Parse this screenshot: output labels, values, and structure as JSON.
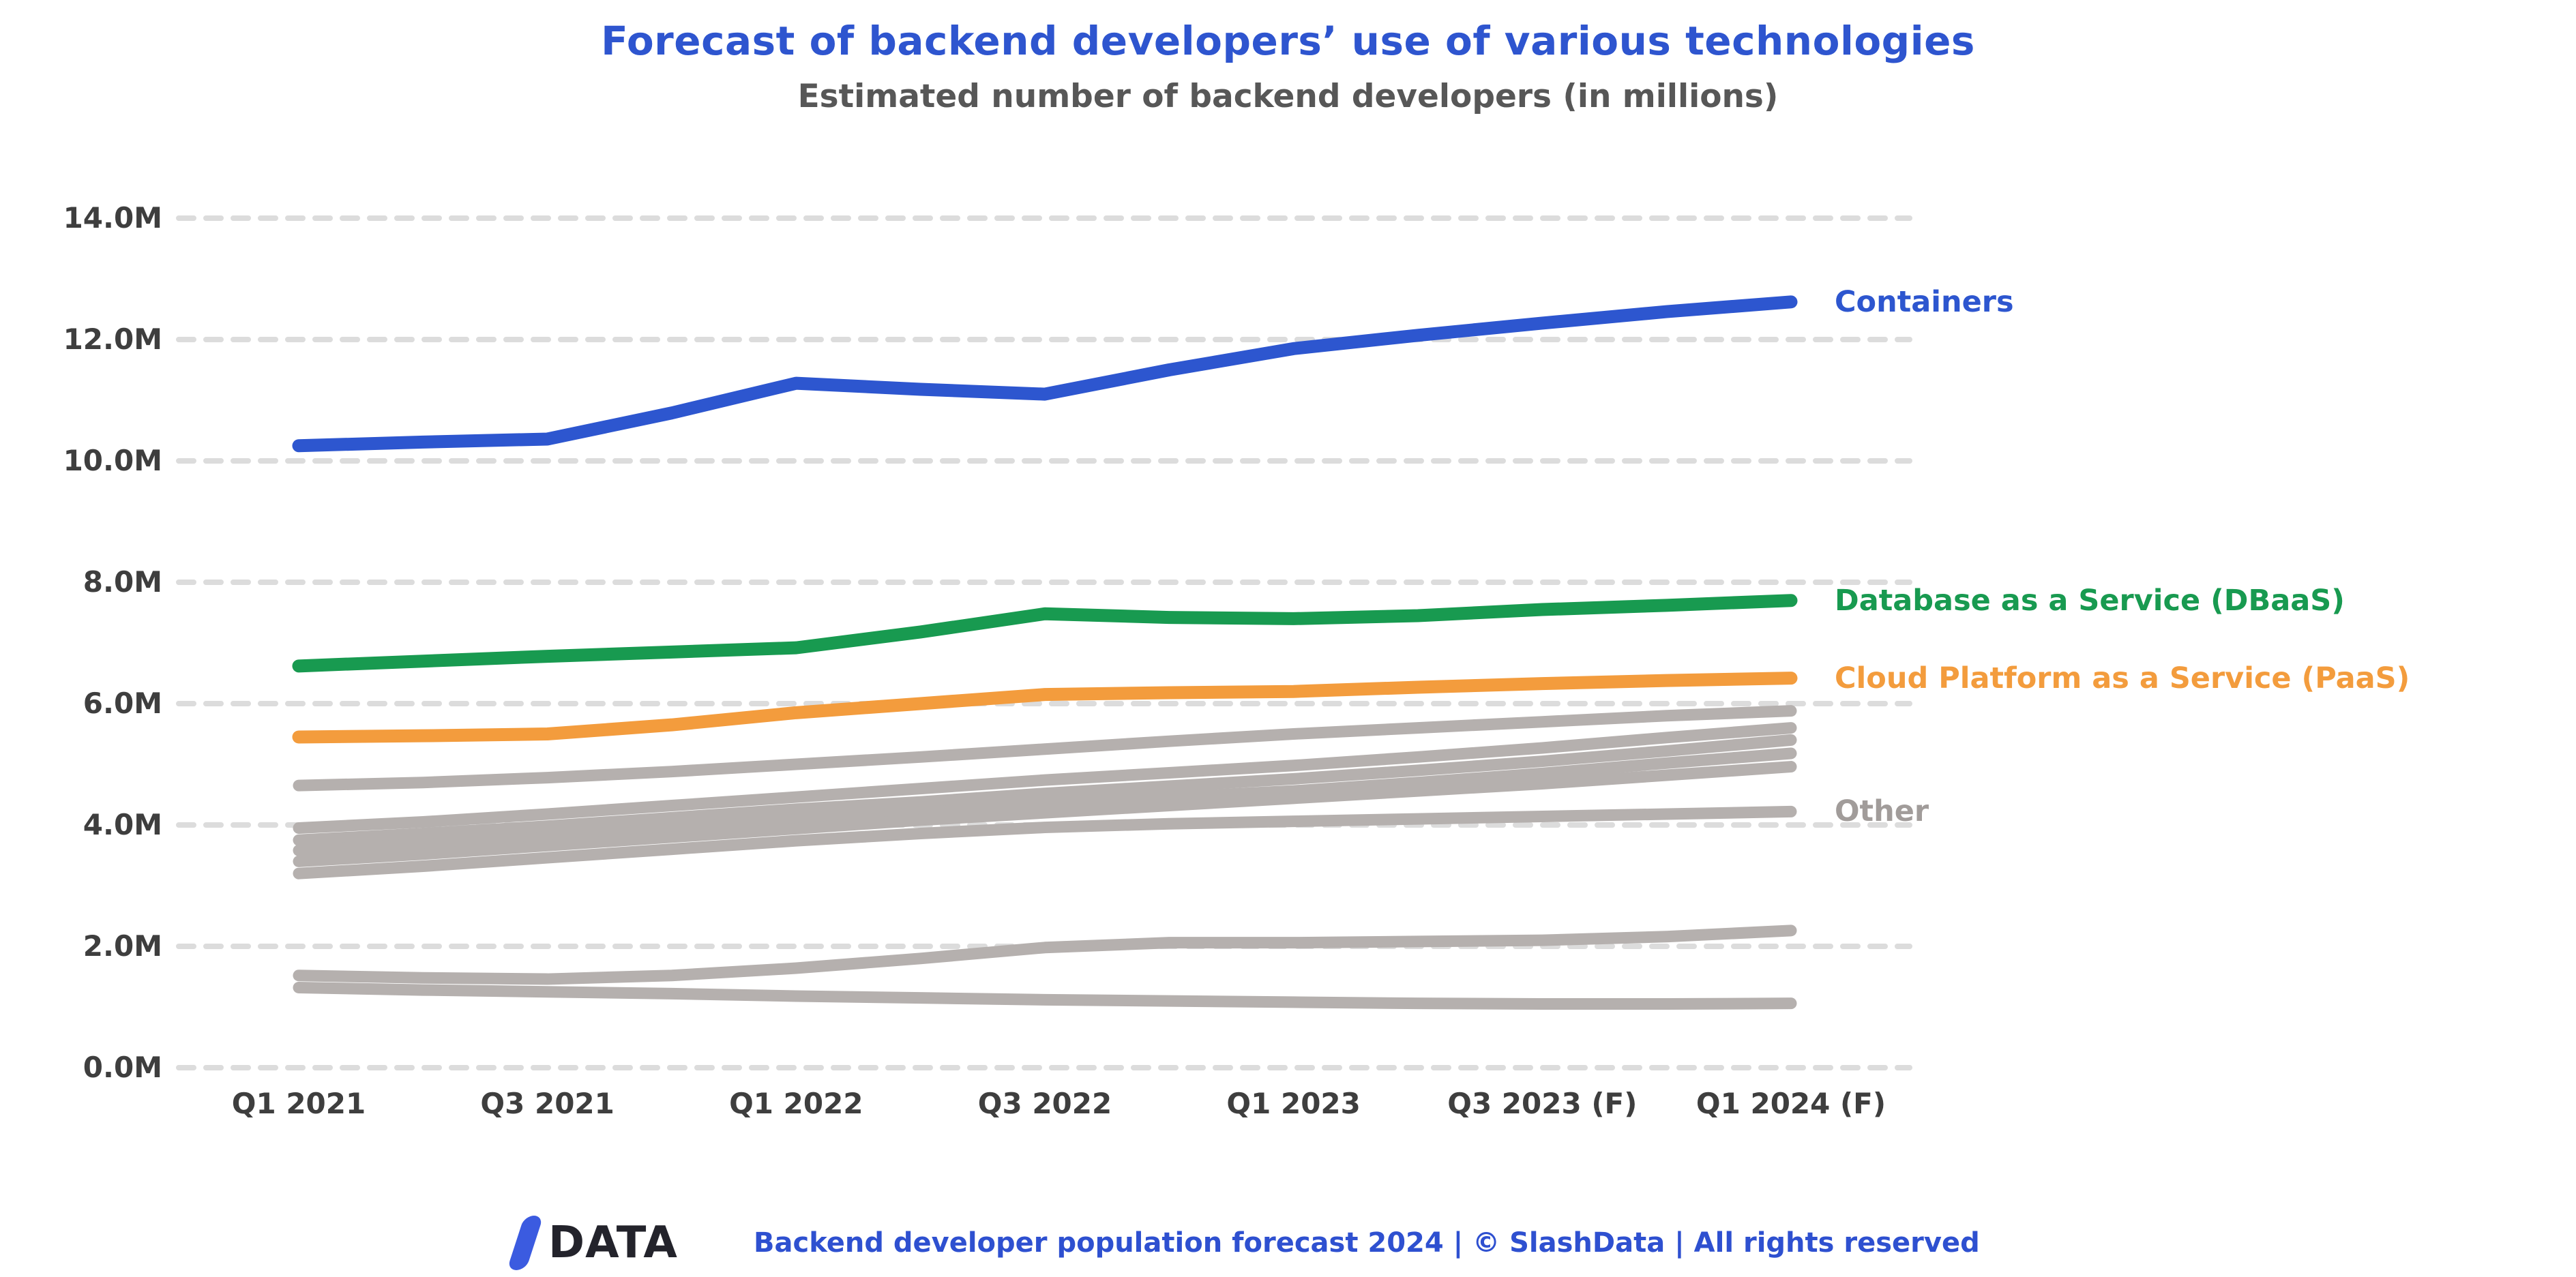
{
  "title": "Forecast of backend developers’ use of various technologies",
  "subtitle": "Estimated number of backend developers (in millions)",
  "footer": {
    "logo_slash": "/",
    "logo_text": "DATA",
    "attribution": "Backend developer population forecast 2024 | © SlashData | All rights reserved"
  },
  "colors": {
    "title_blue": "#2e55cf",
    "containers_blue": "#2d56cf",
    "dbaas_green": "#189a50",
    "paas_orange": "#f39c3d",
    "other_gray_line": "#b5b0ae",
    "other_gray_label": "#a19c9a",
    "gridline": "#dcdcdc",
    "axis_text": "#3e3e3e",
    "subtitle_text": "#575757",
    "footer_text": "#2e50d0",
    "logo_dark": "#23232b",
    "logo_slash_blue": "#3b5be0"
  },
  "chart_data": {
    "type": "line",
    "title": "Forecast of backend developers’ use of various technologies",
    "subtitle": "Estimated number of backend developers (in millions)",
    "grid": "horizontal dashed",
    "legend_position": "right of line ends",
    "ylim": [
      0,
      14
    ],
    "y_unit": "millions of developers",
    "y_ticks": [
      "14.0M",
      "12.0M",
      "10.0M",
      "8.0M",
      "6.0M",
      "4.0M",
      "2.0M",
      "0.0M"
    ],
    "x_labels": [
      "Q1 2021",
      "Q3 2021",
      "Q1 2022",
      "Q3 2022",
      "Q1 2023",
      "Q3 2023 (F)",
      "Q1 2024 (F)"
    ],
    "x_points": [
      "Q1 2021",
      "Q2 2021",
      "Q3 2021",
      "Q4 2021",
      "Q1 2022",
      "Q2 2022",
      "Q3 2022",
      "Q4 2022",
      "Q1 2023",
      "Q2 2023",
      "Q3 2023",
      "Q4 2023",
      "Q1 2024"
    ],
    "series": [
      {
        "name": "Containers",
        "color": "#2d56cf",
        "label_color": "#2d56cf",
        "label_anchor": 12.62,
        "values": [
          10.25,
          10.31,
          10.36,
          10.79,
          11.28,
          11.18,
          11.1,
          11.5,
          11.85,
          12.07,
          12.27,
          12.46,
          12.62
        ]
      },
      {
        "name": "Database as a Service (DBaaS)",
        "color": "#189a50",
        "label_color": "#189a50",
        "label_anchor": 7.7,
        "values": [
          6.62,
          6.7,
          6.78,
          6.85,
          6.92,
          7.18,
          7.48,
          7.42,
          7.4,
          7.45,
          7.55,
          7.62,
          7.7
        ]
      },
      {
        "name": "Cloud Platform as a Service (PaaS)",
        "color": "#f39c3d",
        "label_color": "#f39c3d",
        "label_anchor": 6.42,
        "values": [
          5.45,
          5.47,
          5.5,
          5.65,
          5.85,
          6.0,
          6.15,
          6.18,
          6.2,
          6.27,
          6.33,
          6.38,
          6.42
        ]
      },
      {
        "name": "Other",
        "color": "#b5b0ae",
        "label_color": "#a19c9a",
        "label_anchor": 4.22,
        "lines": [
          [
            4.65,
            4.7,
            4.78,
            4.88,
            5.0,
            5.12,
            5.25,
            5.38,
            5.5,
            5.6,
            5.7,
            5.8,
            5.88
          ],
          [
            3.95,
            4.05,
            4.18,
            4.32,
            4.46,
            4.6,
            4.74,
            4.86,
            4.98,
            5.12,
            5.27,
            5.44,
            5.6
          ],
          [
            3.75,
            3.86,
            3.98,
            4.12,
            4.26,
            4.38,
            4.52,
            4.64,
            4.76,
            4.9,
            5.05,
            5.22,
            5.4
          ],
          [
            3.58,
            3.68,
            3.8,
            3.94,
            4.08,
            4.2,
            4.34,
            4.46,
            4.56,
            4.7,
            4.85,
            5.02,
            5.18
          ],
          [
            3.4,
            3.52,
            3.66,
            3.8,
            3.94,
            4.08,
            4.2,
            4.32,
            4.44,
            4.56,
            4.68,
            4.82,
            4.96
          ],
          [
            3.2,
            3.32,
            3.46,
            3.6,
            3.74,
            3.86,
            3.96,
            4.02,
            4.06,
            4.1,
            4.14,
            4.18,
            4.22
          ],
          [
            1.52,
            1.48,
            1.46,
            1.52,
            1.64,
            1.8,
            1.98,
            2.06,
            2.06,
            2.08,
            2.1,
            2.16,
            2.26
          ],
          [
            1.32,
            1.28,
            1.25,
            1.22,
            1.18,
            1.15,
            1.12,
            1.1,
            1.08,
            1.06,
            1.05,
            1.05,
            1.06
          ]
        ]
      }
    ]
  }
}
